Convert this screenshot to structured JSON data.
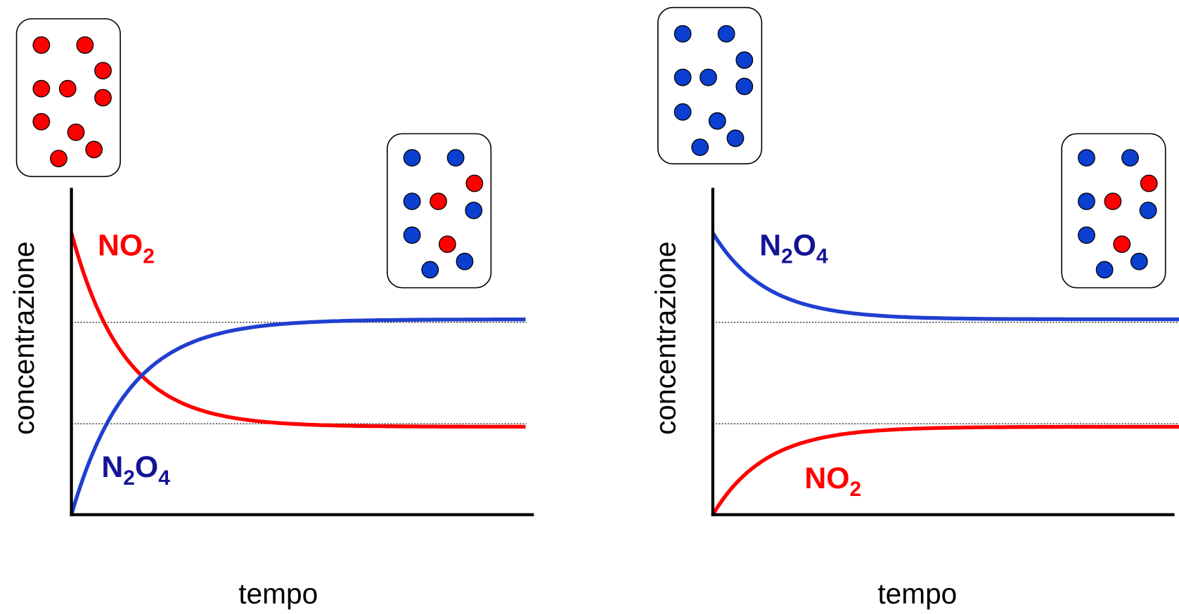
{
  "panels": [
    {
      "y_label": "concentrazione",
      "x_label": "tempo",
      "curves": [
        {
          "segments": [
            {
              "text": "NO"
            },
            {
              "text": "2",
              "sub": true
            }
          ],
          "color": "#ff0000"
        },
        {
          "segments": [
            {
              "text": "N"
            },
            {
              "text": "2",
              "sub": true
            },
            {
              "text": "O"
            },
            {
              "text": "4",
              "sub": true
            }
          ],
          "color": "#1f3fcf"
        }
      ]
    },
    {
      "y_label": "concentrazione",
      "x_label": "tempo",
      "curves": [
        {
          "segments": [
            {
              "text": "N"
            },
            {
              "text": "2",
              "sub": true
            },
            {
              "text": "O"
            },
            {
              "text": "4",
              "sub": true
            }
          ],
          "color": "#1f3fcf"
        },
        {
          "segments": [
            {
              "text": "NO"
            },
            {
              "text": "2",
              "sub": true
            }
          ],
          "color": "#ff0000"
        }
      ]
    }
  ]
}
